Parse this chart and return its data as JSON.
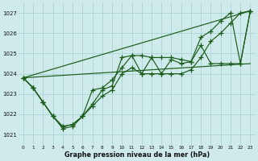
{
  "xlabel": "Graphe pression niveau de la mer (hPa)",
  "background_color": "#ceeaea",
  "grid_color": "#aad4d4",
  "line_color": "#1a5c1a",
  "xlim": [
    -0.5,
    23.5
  ],
  "ylim": [
    1020.5,
    1027.5
  ],
  "yticks": [
    1021,
    1022,
    1023,
    1024,
    1025,
    1026,
    1027
  ],
  "xticks": [
    0,
    1,
    2,
    3,
    4,
    5,
    6,
    7,
    8,
    9,
    10,
    11,
    12,
    13,
    14,
    15,
    16,
    17,
    18,
    19,
    20,
    21,
    22,
    23
  ],
  "series1_x": [
    0,
    1,
    2,
    3,
    4,
    5,
    6,
    7,
    8,
    9,
    10,
    11,
    12,
    13,
    14,
    15,
    16,
    17,
    18,
    19,
    20,
    21,
    22,
    23
  ],
  "series1_y": [
    1023.8,
    1023.3,
    1022.6,
    1021.9,
    1021.4,
    1021.5,
    1021.9,
    1022.5,
    1023.2,
    1023.4,
    1024.8,
    1024.9,
    1024.9,
    1024.8,
    1024.8,
    1024.8,
    1024.7,
    1024.6,
    1025.4,
    1024.5,
    1024.5,
    1024.5,
    1024.5,
    1027.1
  ],
  "series2_x": [
    0,
    1,
    2,
    3,
    4,
    5,
    6,
    7,
    8,
    9,
    10,
    11,
    12,
    13,
    14,
    15,
    16,
    17,
    18,
    19,
    20,
    21,
    22,
    23
  ],
  "series2_y": [
    1023.8,
    1023.3,
    1022.6,
    1021.9,
    1021.4,
    1021.5,
    1021.9,
    1023.2,
    1023.3,
    1023.7,
    1024.3,
    1024.9,
    1024.0,
    1024.8,
    1024.0,
    1024.7,
    1024.5,
    1024.6,
    1025.8,
    1026.1,
    1026.6,
    1027.0,
    1024.5,
    1027.1
  ],
  "series3_x": [
    0,
    1,
    2,
    3,
    4,
    5,
    6,
    7,
    8,
    9,
    10,
    11,
    12,
    13,
    14,
    15,
    16,
    17,
    18,
    19,
    20,
    21,
    22,
    23
  ],
  "series3_y": [
    1023.8,
    1023.3,
    1022.6,
    1021.9,
    1021.3,
    1021.4,
    1021.9,
    1022.4,
    1022.9,
    1023.2,
    1024.0,
    1024.3,
    1024.0,
    1024.0,
    1024.0,
    1024.0,
    1024.0,
    1024.2,
    1024.8,
    1025.6,
    1026.0,
    1026.5,
    1027.0,
    1027.1
  ],
  "refline1_x": [
    0,
    23
  ],
  "refline1_y": [
    1023.8,
    1027.1
  ],
  "refline2_x": [
    0,
    23
  ],
  "refline2_y": [
    1023.8,
    1024.5
  ]
}
